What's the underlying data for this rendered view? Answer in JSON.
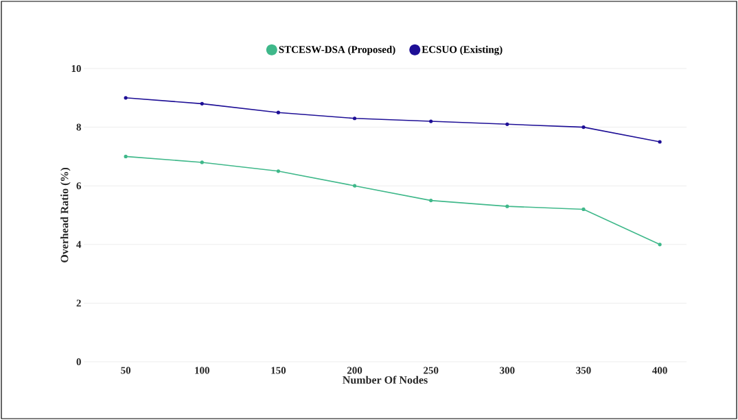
{
  "chart_data": {
    "type": "line",
    "xlabel": "Number Of Nodes",
    "ylabel": "Overhead Ratio (%)",
    "categories": [
      "50",
      "100",
      "150",
      "200",
      "250",
      "300",
      "350",
      "400"
    ],
    "series": [
      {
        "name": "STCESW-DSA (Proposed)",
        "color": "#3fb88a",
        "values": [
          7,
          6.8,
          6.5,
          6.0,
          5.5,
          5.3,
          5.2,
          4.0
        ]
      },
      {
        "name": "ECSUO (Existing)",
        "color": "#1e0f96",
        "values": [
          9,
          8.8,
          8.5,
          8.3,
          8.2,
          8.1,
          8.0,
          7.5
        ]
      }
    ],
    "ylim": [
      0,
      10
    ],
    "yticks": [
      0,
      2,
      4,
      6,
      8,
      10
    ],
    "grid": "y",
    "legend": "top",
    "marker": "circle",
    "line_style": "solid"
  }
}
